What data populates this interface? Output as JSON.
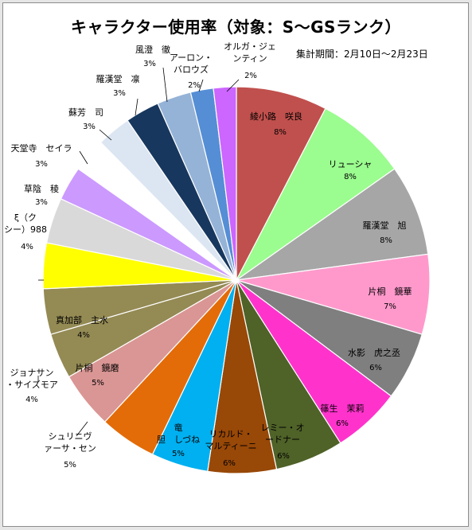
{
  "chart_data": {
    "type": "pie",
    "title": "キャラクター使用率（対象：S～GSランク）",
    "subtitle": "集計期間：2月10日～2月23日",
    "slices": [
      {
        "label": "綾小路　咲良",
        "percent_label": "8%",
        "value": 8,
        "color": "#c0504d"
      },
      {
        "label": "リューシャ",
        "percent_label": "8%",
        "value": 8,
        "color": "#9bfc8f"
      },
      {
        "label": "羅漢堂　旭",
        "percent_label": "8%",
        "value": 8,
        "color": "#a6a6a6"
      },
      {
        "label": "片桐　鏡華",
        "percent_label": "7%",
        "value": 7,
        "color": "#ff99cc"
      },
      {
        "label": "水影　虎之丞",
        "percent_label": "6%",
        "value": 6,
        "color": "#7f7f7f"
      },
      {
        "label": "篠生　茉莉",
        "percent_label": "6%",
        "value": 6,
        "color": "#ff33cc"
      },
      {
        "label": "レミー・オードナー",
        "percent_label": "6%",
        "value": 6,
        "color": "#4f6228"
      },
      {
        "label": "リカルド・マルティーニ",
        "percent_label": "6%",
        "value": 6,
        "color": "#984807"
      },
      {
        "label": "竜胆　しづね",
        "percent_label": "5%",
        "value": 5,
        "color": "#00b0f0"
      },
      {
        "label": "シュリニヴァーサ・セン",
        "percent_label": "5%",
        "value": 5,
        "color": "#e36c09"
      },
      {
        "label": "片桐　鏡磨",
        "percent_label": "5%",
        "value": 5,
        "color": "#da9694"
      },
      {
        "label": "ジョナサン・サイズモア",
        "percent_label": "4%",
        "value": 4,
        "color": "#948a54"
      },
      {
        "label": "真加部　主水",
        "percent_label": "4%",
        "value": 4,
        "color": "#948a54"
      },
      {
        "label": "",
        "percent_label": "",
        "value": 4,
        "color": "#ffff00"
      },
      {
        "label": "ξ（クシー）988",
        "percent_label": "4%",
        "value": 4,
        "color": "#d9d9d9"
      },
      {
        "label": "草陰　稜",
        "percent_label": "3%",
        "value": 3,
        "color": "#cc99ff"
      },
      {
        "label": "天堂寺　セイラ",
        "percent_label": "3%",
        "value": 3,
        "color": "#ffffff"
      },
      {
        "label": "蘇芳　司",
        "percent_label": "3%",
        "value": 3,
        "color": "#dce6f2"
      },
      {
        "label": "羅漢堂　凛",
        "percent_label": "3%",
        "value": 3,
        "color": "#17375e"
      },
      {
        "label": "風澄　徹",
        "percent_label": "3%",
        "value": 3,
        "color": "#95b3d7"
      },
      {
        "label": "アーロン・バロウズ",
        "percent_label": "2%",
        "value": 2,
        "color": "#558ed5"
      },
      {
        "label": "オルガ・ジェンティン",
        "percent_label": "2%",
        "value": 2,
        "color": "#cc66ff"
      }
    ]
  }
}
